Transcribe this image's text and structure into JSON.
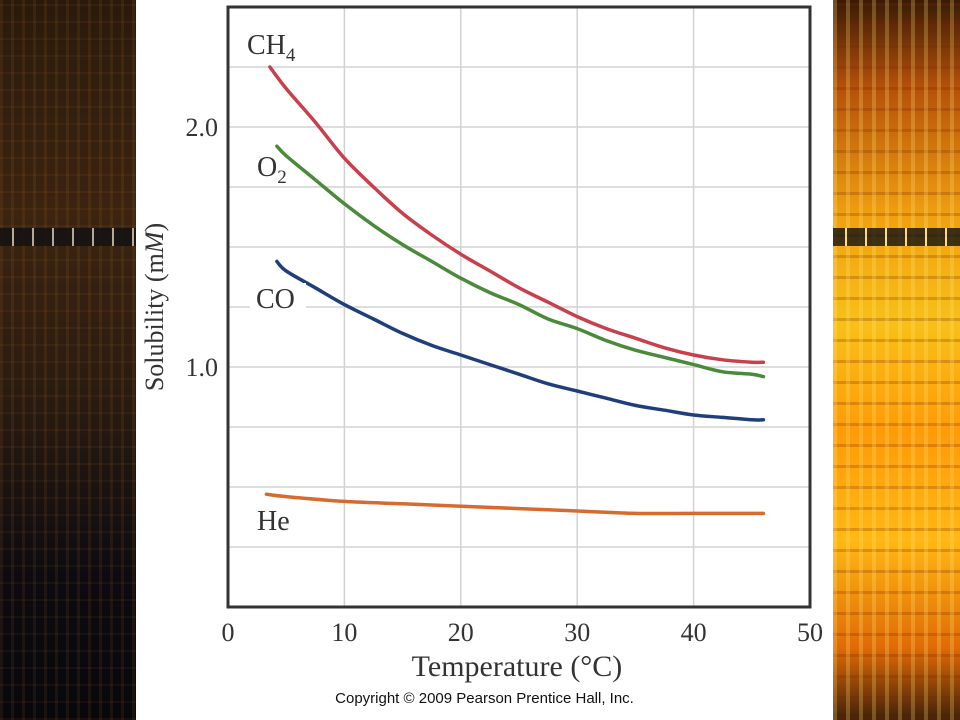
{
  "chart_data": {
    "type": "line",
    "title": "",
    "xlabel": "Temperature (°C)",
    "ylabel_main": "Solubility (m",
    "ylabel_italic": "M",
    "ylabel_end": ")",
    "xlim": [
      0,
      50
    ],
    "ylim": [
      0,
      2.5
    ],
    "x_ticks": [
      0,
      10,
      20,
      30,
      40,
      50
    ],
    "y_ticks": [
      {
        "value": 1.0,
        "label": "1.0"
      },
      {
        "value": 2.0,
        "label": "2.0"
      }
    ],
    "grid": true,
    "series": [
      {
        "name": "CH",
        "subscript": "4",
        "color": "#c8404b",
        "x": [
          3.6,
          5,
          7.5,
          10,
          12.5,
          15,
          17.5,
          20,
          22.5,
          25,
          27.5,
          30,
          32.5,
          35,
          37.5,
          40,
          42.5,
          45,
          46
        ],
        "y": [
          2.25,
          2.16,
          2.02,
          1.87,
          1.75,
          1.64,
          1.55,
          1.47,
          1.4,
          1.33,
          1.27,
          1.21,
          1.16,
          1.12,
          1.08,
          1.05,
          1.03,
          1.02,
          1.02
        ]
      },
      {
        "name": "O",
        "subscript": "2",
        "color": "#4a8a3a",
        "x": [
          4.2,
          5,
          7.5,
          10,
          12.5,
          15,
          17.5,
          20,
          22.5,
          25,
          27.5,
          30,
          32.5,
          35,
          37.5,
          40,
          42.5,
          45,
          46
        ],
        "y": [
          1.92,
          1.88,
          1.78,
          1.68,
          1.59,
          1.51,
          1.44,
          1.37,
          1.31,
          1.26,
          1.2,
          1.16,
          1.11,
          1.07,
          1.04,
          1.01,
          0.98,
          0.97,
          0.96
        ]
      },
      {
        "name": "CO",
        "subscript": "",
        "color": "#1f3f7a",
        "x": [
          4.2,
          5,
          7.5,
          10,
          12.5,
          15,
          17.5,
          20,
          22.5,
          25,
          27.5,
          30,
          32.5,
          35,
          37.5,
          40,
          42.5,
          45,
          46
        ],
        "y": [
          1.44,
          1.4,
          1.33,
          1.26,
          1.2,
          1.14,
          1.09,
          1.05,
          1.01,
          0.97,
          0.93,
          0.9,
          0.87,
          0.84,
          0.82,
          0.8,
          0.79,
          0.78,
          0.78
        ]
      },
      {
        "name": "He",
        "subscript": "",
        "color": "#d86a2e",
        "x": [
          3.3,
          5,
          10,
          15,
          20,
          25,
          30,
          35,
          40,
          45,
          46
        ],
        "y": [
          0.47,
          0.46,
          0.44,
          0.43,
          0.42,
          0.41,
          0.4,
          0.39,
          0.39,
          0.39,
          0.39
        ]
      }
    ]
  },
  "copyright": "Copyright © 2009 Pearson Prentice Hall, Inc."
}
